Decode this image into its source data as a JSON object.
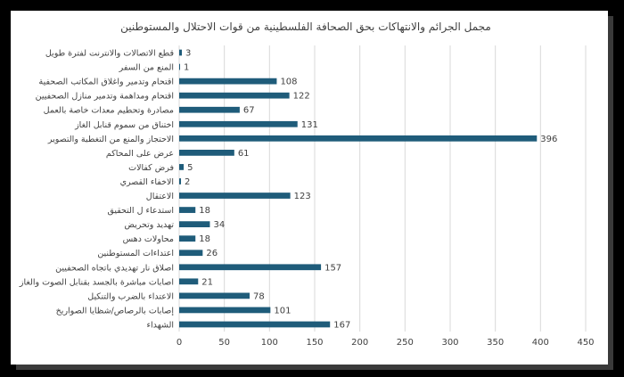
{
  "chart_data": {
    "type": "bar",
    "orientation": "horizontal",
    "title": "مجمل الجرائم والانتهاكات بحق الصحافة الفلسطينية من قوات الاحتلال والمستوطنين",
    "categories": [
      "قطع الاتصالات والانترنت لفترة طويل",
      "المنع من السفر",
      "اقتحام وتدمير واغلاق المكاتب الصحفية",
      "اقتحام ومداهمة وتدمير منازل الصحفيين",
      "مصادرة وتحطيم معدات خاصة بالعمل",
      "اختناق من سموم قنابل الغاز",
      "الاحتجاز والمنع من التغطية والتصوير",
      "عرض على المحاكم",
      "فرض كفالات",
      "الاخفاء القصري",
      "الاعتقال",
      "استدعاء ل التحقيق",
      "تهديد وتحريض",
      "محاولات دهس",
      "اعتداءات المستوطنين",
      "اصلاق نار تهديدي باتجاه الصحفيين",
      "اصابات مباشرة بالجسد بقنابل الصوت والغاز",
      "الاعتداء بالضرب والتنكيل",
      "إصابات بالرصاص/شظايا الصواريخ",
      "الشهداء"
    ],
    "values": [
      3,
      1,
      108,
      122,
      67,
      131,
      396,
      61,
      5,
      2,
      123,
      18,
      34,
      18,
      26,
      157,
      21,
      78,
      101,
      167
    ],
    "xlim": [
      0,
      450
    ],
    "xticks": [
      0,
      50,
      100,
      150,
      200,
      250,
      300,
      350,
      400,
      450
    ],
    "data_labels": true,
    "grid": "vertical",
    "bar_color": "#1f5c7a",
    "grid_color": "#d9d9d9",
    "text_color": "#404040"
  }
}
